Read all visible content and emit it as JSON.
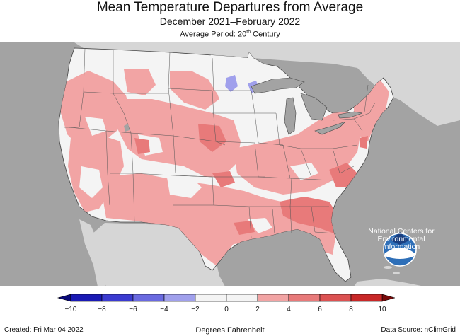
{
  "header": {
    "title": "Mean Temperature Departures from Average",
    "subtitle": "December 2021–February 2022",
    "period_prefix": "Average Period: 20",
    "period_sup": "th",
    "period_suffix": " Century"
  },
  "logo": {
    "name": "NOAA",
    "caption_lines": [
      "National Centers for",
      "Environmental",
      "Information"
    ]
  },
  "legend": {
    "unit_label": "Degrees Fahrenheit",
    "ticks": [
      "−10",
      "−8",
      "−6",
      "−4",
      "−2",
      "0",
      "2",
      "4",
      "6",
      "8",
      "10"
    ],
    "bins": [
      {
        "from": -10,
        "to": -8,
        "color": "#1a1ab4"
      },
      {
        "from": -8,
        "to": -6,
        "color": "#3b3bd0"
      },
      {
        "from": -6,
        "to": -4,
        "color": "#6a6ae0"
      },
      {
        "from": -4,
        "to": -2,
        "color": "#a0a0ec"
      },
      {
        "from": -2,
        "to": 0,
        "color": "#f4f4f4"
      },
      {
        "from": 0,
        "to": 2,
        "color": "#f4f4f4"
      },
      {
        "from": 2,
        "to": 4,
        "color": "#f2a4a4"
      },
      {
        "from": 4,
        "to": 6,
        "color": "#e87a7a"
      },
      {
        "from": 6,
        "to": 8,
        "color": "#dc5252"
      },
      {
        "from": 8,
        "to": 10,
        "color": "#c82828"
      }
    ],
    "low_arrow_color": "#0a0a78",
    "high_arrow_color": "#780a0a"
  },
  "footer": {
    "created": "Created: Fri Mar 04 2022",
    "source": "Data Source: nClimGrid"
  },
  "colors": {
    "ocean": "#a3a3a3",
    "land_outside": "#d6d6d6",
    "lakes": "#a3a3a3",
    "near_normal": "#f4f4f4",
    "warm_2_4": "#f2a4a4",
    "warm_4_6": "#e87a7a",
    "cool_2_4": "#a0a0ec"
  }
}
